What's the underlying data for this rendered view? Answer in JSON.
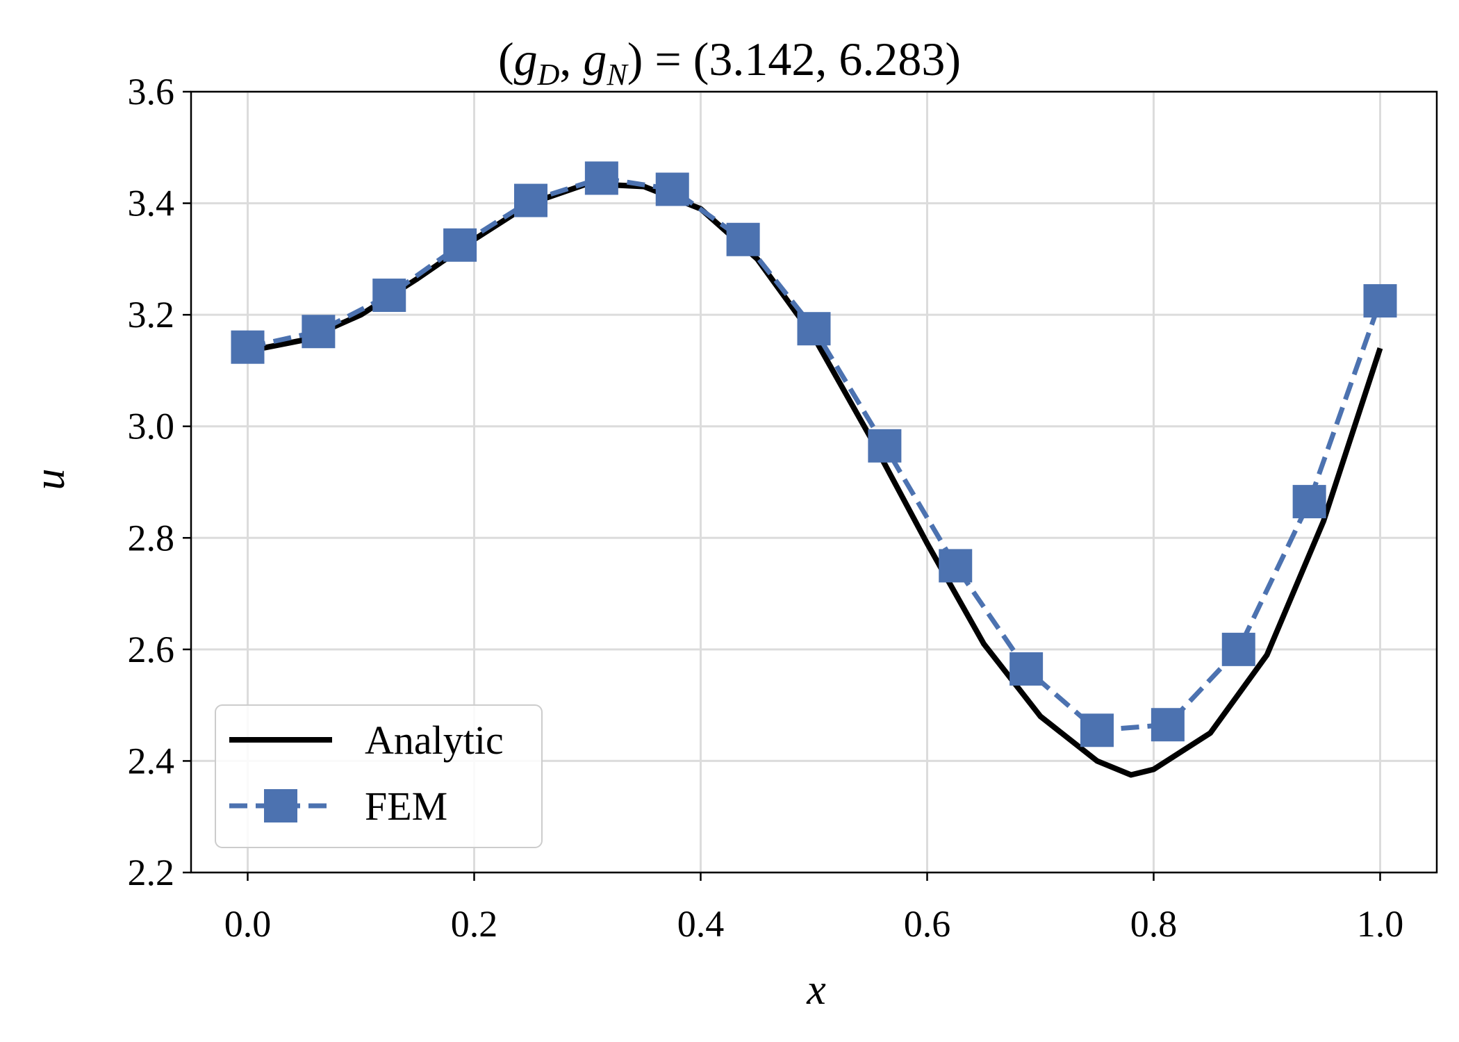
{
  "chart_data": {
    "type": "line",
    "title": "(g_D, g_N) = (3.142, 6.283)",
    "title_parts": {
      "open": "(",
      "g1": "g",
      "sub1": "D",
      "comma": ", ",
      "g2": "g",
      "sub2": "N",
      "rest": ") = (3.142, 6.283)"
    },
    "xlabel": "x",
    "ylabel": "u",
    "xlim": [
      -0.05,
      1.05
    ],
    "ylim": [
      2.2,
      3.6
    ],
    "xticks": [
      "0.0",
      "0.2",
      "0.4",
      "0.6",
      "0.8",
      "1.0"
    ],
    "yticks": [
      "2.2",
      "2.4",
      "2.6",
      "2.8",
      "3.0",
      "3.2",
      "3.4",
      "3.6"
    ],
    "grid": true,
    "legend_position": "lower-left",
    "series": [
      {
        "name": "Analytic",
        "color": "#000000",
        "style": "solid",
        "x": [
          0.0,
          0.05,
          0.1,
          0.15,
          0.2,
          0.25,
          0.3,
          0.35,
          0.4,
          0.45,
          0.5,
          0.55,
          0.6,
          0.65,
          0.7,
          0.75,
          0.78,
          0.8,
          0.85,
          0.9,
          0.95,
          1.0
        ],
        "y": [
          3.135,
          3.155,
          3.2,
          3.265,
          3.335,
          3.4,
          3.435,
          3.43,
          3.39,
          3.3,
          3.16,
          2.98,
          2.79,
          2.61,
          2.48,
          2.4,
          2.375,
          2.385,
          2.45,
          2.59,
          2.83,
          3.14
        ]
      },
      {
        "name": "FEM",
        "color": "#4c72b0",
        "style": "dashed",
        "marker": "square",
        "x": [
          0.0,
          0.0625,
          0.125,
          0.1875,
          0.25,
          0.3125,
          0.375,
          0.4375,
          0.5,
          0.5625,
          0.625,
          0.6875,
          0.75,
          0.8125,
          0.875,
          0.9375,
          1.0
        ],
        "y": [
          3.142,
          3.17,
          3.235,
          3.325,
          3.405,
          3.445,
          3.425,
          3.335,
          3.175,
          2.965,
          2.75,
          2.565,
          2.455,
          2.465,
          2.6,
          2.865,
          3.225
        ]
      }
    ]
  }
}
